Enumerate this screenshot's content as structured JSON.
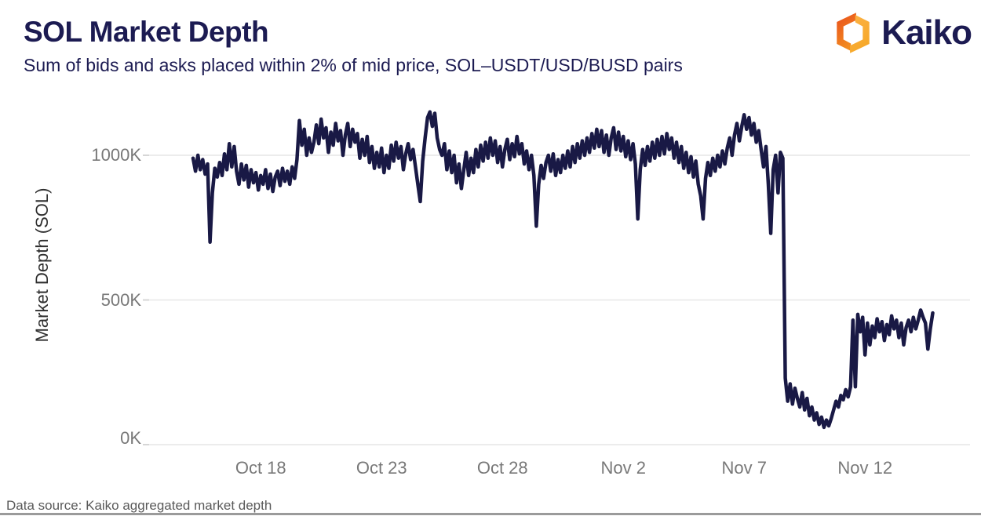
{
  "header": {
    "title": "SOL Market Depth",
    "subtitle": "Sum of bids and asks placed within 2% of mid price, SOL–USDT/USD/BUSD pairs"
  },
  "logo": {
    "brand": "Kaiko",
    "icon": "kaiko-hex-mark",
    "icon_color_left_top": "#e94e1b",
    "icon_color_left_bottom": "#f28c20",
    "icon_color_right_bottom": "#f5a623",
    "icon_color_right_top": "#fbb040",
    "wordmark_color": "#1c1b52"
  },
  "footer": {
    "source_note": "Data source: Kaiko aggregated market depth"
  },
  "chart_data": {
    "type": "line",
    "title": "SOL Market Depth",
    "ylabel": "Market Depth (SOL)",
    "xlabel": "",
    "unit": "thousands of SOL (K)",
    "grid": true,
    "line_color": "#191945",
    "gridline_color": "#ececec",
    "ylim": [
      0,
      1250
    ],
    "y_ticks": [
      {
        "label": "1000K",
        "value": 1000
      },
      {
        "label": "500K",
        "value": 500
      },
      {
        "label": "0K",
        "value": 0
      }
    ],
    "x_ticks": [
      {
        "label": "Oct 18",
        "t": 2.8
      },
      {
        "label": "Oct 23",
        "t": 7.8
      },
      {
        "label": "Oct 28",
        "t": 12.8
      },
      {
        "label": "Nov 2",
        "t": 17.8
      },
      {
        "label": "Nov 7",
        "t": 22.8
      },
      {
        "label": "Nov 12",
        "t": 27.8
      }
    ],
    "series": [
      {
        "name": "SOL market depth within 2% of mid price",
        "t_unit": "days",
        "t_start": 0,
        "t_step": 0.1,
        "values_unit": "K SOL",
        "values": [
          990,
          945,
          1000,
          950,
          985,
          935,
          970,
          700,
          870,
          955,
          925,
          975,
          930,
          1005,
          950,
          1040,
          960,
          1030,
          945,
          900,
          970,
          915,
          965,
          890,
          950,
          905,
          940,
          880,
          930,
          900,
          950,
          885,
          935,
          875,
          925,
          945,
          895,
          955,
          910,
          945,
          900,
          960,
          920,
          985,
          1120,
          1035,
          1090,
          1000,
          1060,
          1010,
          1045,
          1105,
          1040,
          1125,
          1060,
          1095,
          1010,
          1080,
          1035,
          1110,
          1050,
          1085,
          1000,
          1070,
          1110,
          1030,
          1090,
          1045,
          1075,
          990,
          1055,
          1000,
          1065,
          975,
          1030,
          955,
          1010,
          960,
          1025,
          940,
          1000,
          955,
          1035,
          980,
          1045,
          990,
          1030,
          950,
          1005,
          1040,
          985,
          1020,
          960,
          900,
          840,
          980,
          1060,
          1130,
          1150,
          1100,
          1145,
          1060,
          1020,
          1000,
          1040,
          950,
          1015,
          940,
          1000,
          905,
          970,
          885,
          950,
          1010,
          930,
          990,
          940,
          1020,
          960,
          1035,
          980,
          1045,
          990,
          1060,
          1000,
          1050,
          975,
          1030,
          960,
          1020,
          1055,
          985,
          1040,
          995,
          1065,
          1005,
          1040,
          970,
          1015,
          950,
          1000,
          930,
          755,
          900,
          965,
          920,
          975,
          1000,
          945,
          1005,
          930,
          985,
          940,
          1000,
          955,
          1015,
          960,
          1030,
          975,
          1040,
          990,
          1050,
          1000,
          1060,
          1010,
          1075,
          1025,
          1090,
          1030,
          1085,
          1010,
          1070,
          1000,
          1060,
          1095,
          1020,
          1080,
          1015,
          1065,
          995,
          1050,
          985,
          1040,
          970,
          780,
          950,
          1020,
          965,
          1030,
          980,
          1045,
          990,
          1055,
          1000,
          1065,
          1005,
          1075,
          1020,
          1060,
          990,
          1045,
          975,
          1030,
          955,
          1010,
          940,
          995,
          925,
          980,
          900,
          860,
          780,
          920,
          975,
          930,
          990,
          945,
          1000,
          960,
          1015,
          970,
          1025,
          1060,
          1000,
          1070,
          1110,
          1050,
          1100,
          1140,
          1090,
          1130,
          1070,
          1110,
          1045,
          1085,
          1020,
          960,
          1030,
          900,
          730,
          950,
          1000,
          870,
          1010,
          990,
          230,
          150,
          210,
          140,
          195,
          160,
          130,
          180,
          120,
          160,
          100,
          130,
          85,
          110,
          70,
          95,
          60,
          85,
          65,
          90,
          120,
          150,
          130,
          170,
          155,
          190,
          165,
          200,
          430,
          200,
          450,
          390,
          440,
          310,
          420,
          345,
          410,
          370,
          435,
          390,
          425,
          360,
          415,
          380,
          445,
          400,
          430,
          370,
          420,
          345,
          405,
          430,
          390,
          440,
          400,
          430,
          465,
          440,
          420,
          330,
          400,
          455
        ]
      }
    ]
  }
}
